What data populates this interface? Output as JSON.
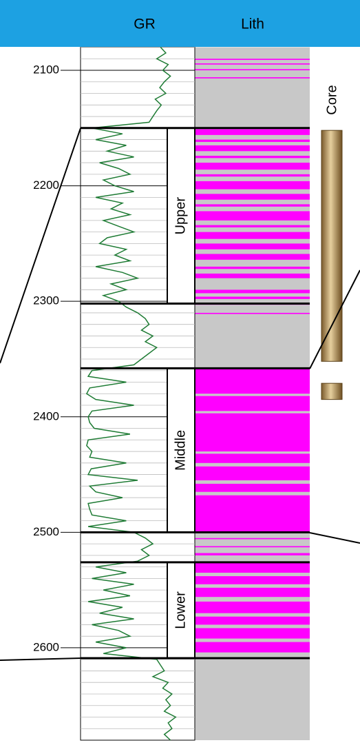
{
  "chart_data": {
    "type": "well-log",
    "columns": [
      "GR",
      "Lith"
    ],
    "ylim": [
      2080,
      2680
    ],
    "yticks": [
      2100,
      2200,
      2300,
      2400,
      2500,
      2600
    ],
    "minor_yticks": [
      2080,
      2090,
      2110,
      2120,
      2130,
      2140,
      2150,
      2160,
      2170,
      2180,
      2190,
      2210,
      2220,
      2230,
      2240,
      2250,
      2260,
      2270,
      2280,
      2290,
      2310,
      2320,
      2330,
      2340,
      2350,
      2360,
      2370,
      2380,
      2390,
      2410,
      2420,
      2430,
      2440,
      2450,
      2460,
      2470,
      2480,
      2490,
      2510,
      2520,
      2530,
      2540,
      2550,
      2560,
      2570,
      2580,
      2590,
      2610,
      2620,
      2630,
      2640,
      2650,
      2660,
      2670
    ],
    "gr": {
      "color": "#1e7b34",
      "xlim": [
        0,
        150
      ],
      "depth": [
        2080,
        2085,
        2090,
        2095,
        2100,
        2105,
        2110,
        2115,
        2120,
        2125,
        2130,
        2135,
        2140,
        2145,
        2150,
        2155,
        2160,
        2165,
        2170,
        2175,
        2180,
        2185,
        2190,
        2195,
        2200,
        2205,
        2210,
        2215,
        2220,
        2225,
        2230,
        2235,
        2240,
        2245,
        2250,
        2255,
        2260,
        2265,
        2270,
        2275,
        2280,
        2285,
        2290,
        2295,
        2300,
        2305,
        2310,
        2315,
        2320,
        2325,
        2330,
        2335,
        2340,
        2345,
        2350,
        2355,
        2360,
        2365,
        2370,
        2375,
        2380,
        2385,
        2390,
        2395,
        2400,
        2405,
        2410,
        2415,
        2420,
        2425,
        2430,
        2435,
        2440,
        2445,
        2450,
        2455,
        2460,
        2465,
        2470,
        2475,
        2480,
        2485,
        2490,
        2495,
        2500,
        2505,
        2510,
        2515,
        2520,
        2525,
        2530,
        2535,
        2540,
        2545,
        2550,
        2555,
        2560,
        2565,
        2570,
        2575,
        2580,
        2585,
        2590,
        2595,
        2600,
        2605,
        2610,
        2615,
        2620,
        2625,
        2630,
        2635,
        2640,
        2645,
        2650,
        2655,
        2660,
        2665,
        2670,
        2675,
        2680
      ],
      "values": [
        105,
        112,
        100,
        115,
        108,
        118,
        110,
        104,
        112,
        98,
        106,
        100,
        95,
        90,
        15,
        55,
        20,
        60,
        35,
        70,
        25,
        50,
        65,
        30,
        45,
        70,
        20,
        55,
        40,
        65,
        30,
        50,
        70,
        35,
        25,
        60,
        45,
        65,
        20,
        55,
        75,
        40,
        60,
        30,
        50,
        60,
        75,
        85,
        90,
        80,
        95,
        85,
        100,
        90,
        80,
        70,
        15,
        10,
        60,
        12,
        8,
        20,
        70,
        15,
        10,
        12,
        18,
        65,
        10,
        8,
        15,
        12,
        60,
        14,
        10,
        75,
        12,
        20,
        55,
        10,
        12,
        15,
        60,
        10,
        70,
        85,
        95,
        80,
        90,
        75,
        20,
        60,
        15,
        70,
        30,
        65,
        10,
        55,
        25,
        70,
        15,
        50,
        65,
        20,
        60,
        30,
        100,
        105,
        110,
        95,
        115,
        108,
        120,
        112,
        118,
        110,
        125,
        115,
        120,
        110,
        118
      ]
    },
    "lith": {
      "background": "#c8c8c8",
      "color": "#ff00ff",
      "sand": [
        [
          2090,
          2091
        ],
        [
          2094,
          2095
        ],
        [
          2099,
          2100
        ],
        [
          2106,
          2107
        ],
        [
          2151,
          2156
        ],
        [
          2160,
          2162
        ],
        [
          2165,
          2170
        ],
        [
          2174,
          2176
        ],
        [
          2180,
          2186
        ],
        [
          2190,
          2192
        ],
        [
          2196,
          2203
        ],
        [
          2207,
          2212
        ],
        [
          2216,
          2218
        ],
        [
          2222,
          2230
        ],
        [
          2234,
          2236
        ],
        [
          2240,
          2246
        ],
        [
          2250,
          2255
        ],
        [
          2259,
          2264
        ],
        [
          2270,
          2272
        ],
        [
          2276,
          2280
        ],
        [
          2290,
          2293
        ],
        [
          2296,
          2298
        ],
        [
          2302,
          2303
        ],
        [
          2310,
          2311
        ],
        [
          2358,
          2380
        ],
        [
          2382,
          2395
        ],
        [
          2397,
          2430
        ],
        [
          2432,
          2440
        ],
        [
          2443,
          2455
        ],
        [
          2458,
          2465
        ],
        [
          2468,
          2500
        ],
        [
          2505,
          2506
        ],
        [
          2512,
          2513
        ],
        [
          2518,
          2520
        ],
        [
          2526,
          2535
        ],
        [
          2538,
          2545
        ],
        [
          2548,
          2556
        ],
        [
          2560,
          2570
        ],
        [
          2573,
          2580
        ],
        [
          2583,
          2592
        ],
        [
          2595,
          2604
        ]
      ]
    },
    "zones": [
      {
        "name": "Upper",
        "top": 2150,
        "base": 2302
      },
      {
        "name": "Middle",
        "top": 2358,
        "base": 2500
      },
      {
        "name": "Lower",
        "top": 2526,
        "base": 2609
      }
    ],
    "core": {
      "label": "Core",
      "intervals": [
        [
          2152,
          2352
        ],
        [
          2371,
          2385
        ]
      ]
    }
  }
}
